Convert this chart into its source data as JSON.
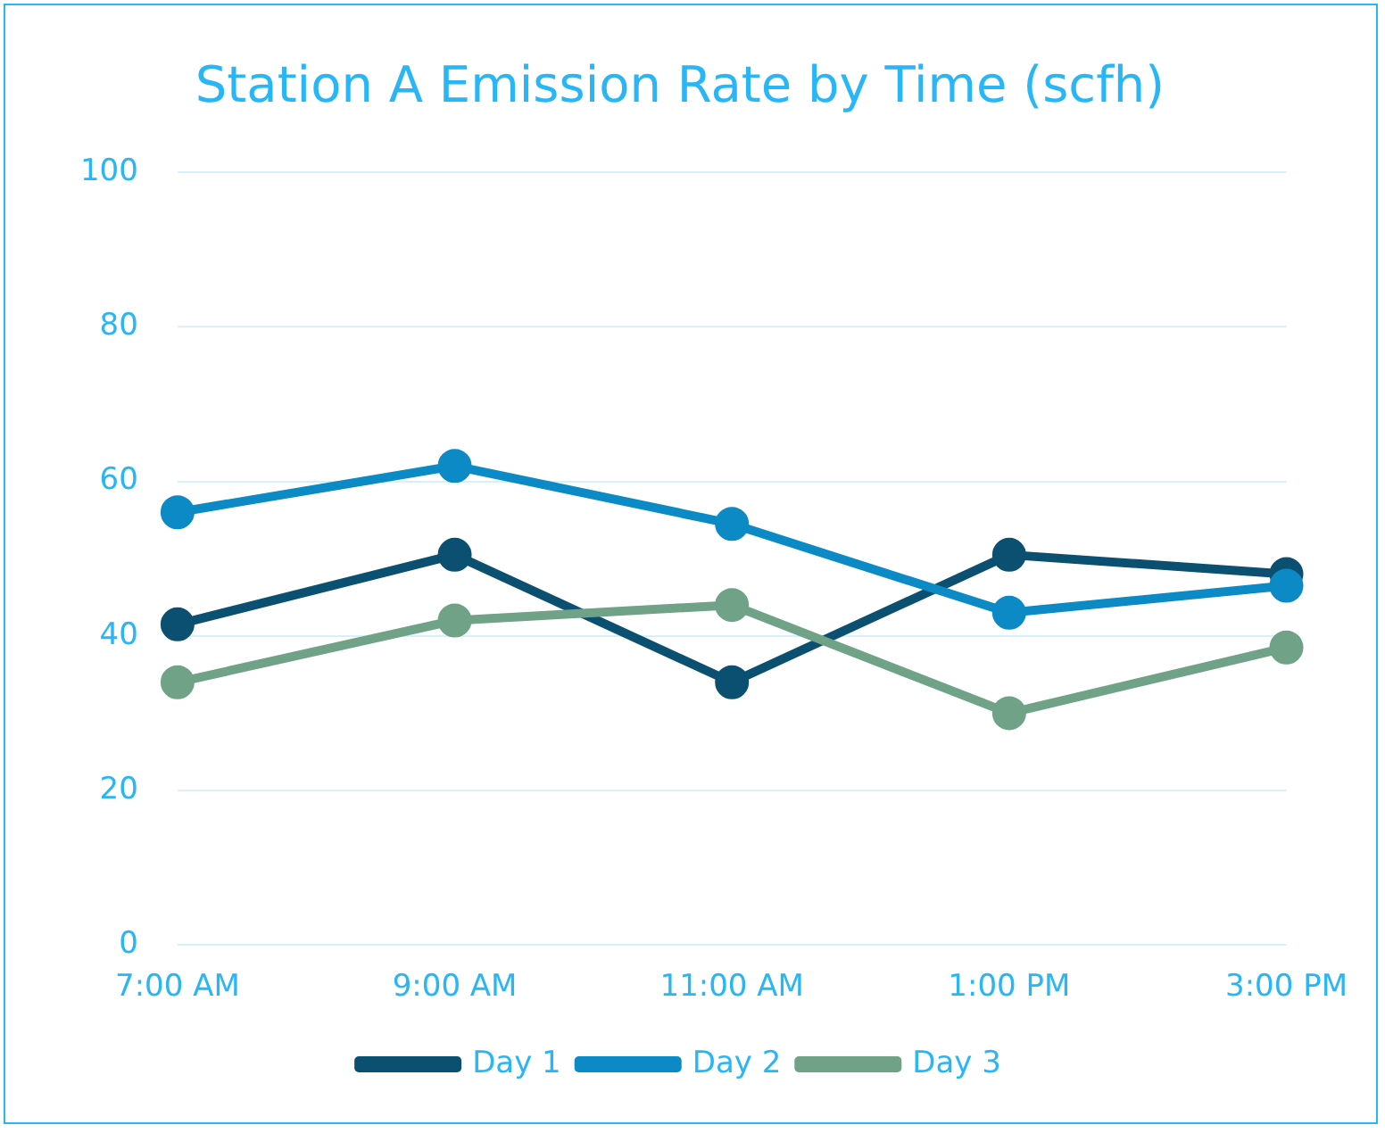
{
  "chart_data": {
    "type": "line",
    "title": "Station A Emission Rate by Time (scfh)",
    "categories": [
      "7:00 AM",
      "9:00 AM",
      "11:00 AM",
      "1:00 PM",
      "3:00 PM"
    ],
    "series": [
      {
        "name": "Day 1",
        "color": "#0b4f71",
        "values": [
          41.5,
          50.5,
          34,
          50.5,
          48
        ]
      },
      {
        "name": "Day 2",
        "color": "#0b8ac6",
        "values": [
          56,
          62,
          54.5,
          43,
          46.5
        ]
      },
      {
        "name": "Day 3",
        "color": "#6fa287",
        "values": [
          34,
          42,
          44,
          30,
          38.5
        ]
      }
    ],
    "ylim": [
      0,
      100
    ],
    "yticks": [
      0,
      20,
      40,
      60,
      80,
      100
    ],
    "grid": "y",
    "legend": "bottom",
    "marker": "circle",
    "line_style": "solid"
  }
}
